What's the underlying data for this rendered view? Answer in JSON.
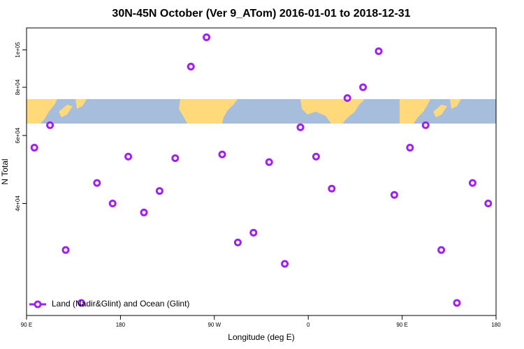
{
  "chart_data": {
    "type": "scatter",
    "title": "30N-45N October (Ver 9_ATom)   2016-01-01 to 2018-12-31",
    "xlabel": "Longitude (deg E)",
    "ylabel": "N Total",
    "x": [
      97.5,
      112.5,
      127.5,
      142.5,
      157.5,
      172.5,
      187.5,
      202.5,
      217.5,
      232.5,
      247.5,
      262.5,
      277.5,
      292.5,
      307.5,
      322.5,
      337.5,
      352.5,
      367.5,
      382.5,
      397.5,
      412.5,
      427.5,
      442.5,
      457.5,
      472.5,
      487.5,
      502.5,
      517.5,
      532.5
    ],
    "series": [
      {
        "name": "Land (Nadir&Glint) and Ocean (Glint)",
        "color": "#a020f0",
        "values": [
          55800,
          63800,
          30300,
          22100,
          45200,
          40000,
          52900,
          37900,
          43100,
          52400,
          90500,
          107800,
          53600,
          31700,
          33600,
          51200,
          27900,
          63000,
          52900,
          43700,
          75000,
          80000,
          99200,
          42100,
          55800,
          63800,
          30300,
          22100,
          45200,
          40000
        ]
      }
    ],
    "xlim": [
      90,
      540
    ],
    "xticks": [
      {
        "value": 90,
        "label": "90 E"
      },
      {
        "value": 180,
        "label": "180"
      },
      {
        "value": 270,
        "label": "90 W"
      },
      {
        "value": 360,
        "label": "0"
      },
      {
        "value": 450,
        "label": "90 E"
      },
      {
        "value": 540,
        "label": "180"
      }
    ],
    "ylim": [
      20500,
      114000
    ],
    "yticks": [
      {
        "value": 40000,
        "label": "4e+04"
      },
      {
        "value": 60000,
        "label": "6e+04"
      },
      {
        "value": 80000,
        "label": "8e+04"
      },
      {
        "value": 100000,
        "label": "1e+05"
      }
    ],
    "ylog": true,
    "legend": "bottomleft"
  }
}
